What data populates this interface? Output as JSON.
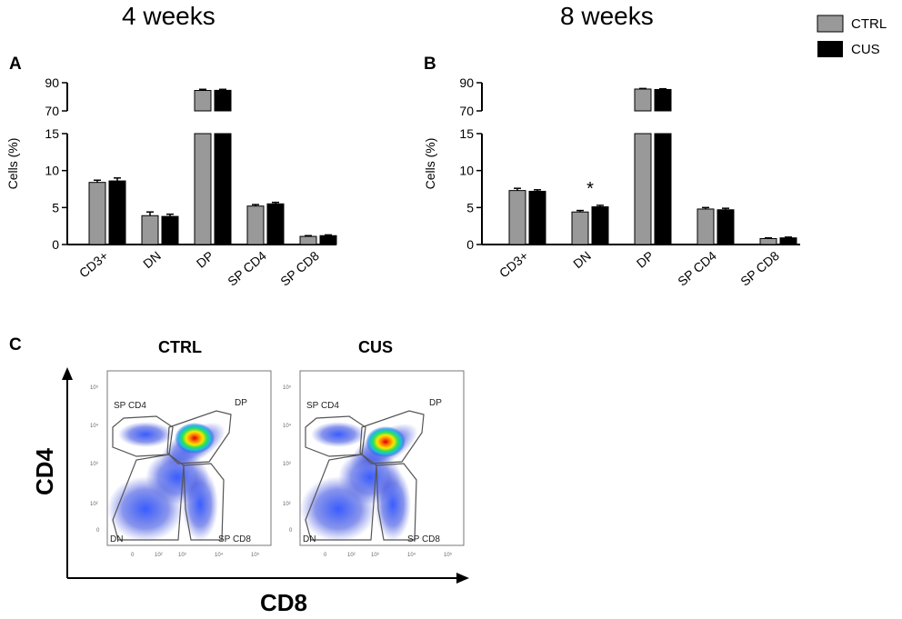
{
  "headers": {
    "left": "4 weeks",
    "right": "8 weeks"
  },
  "legend": [
    {
      "label": "CTRL",
      "color": "#999999"
    },
    {
      "label": "CUS",
      "color": "#000000"
    }
  ],
  "panel_labels": {
    "a": "A",
    "b": "B",
    "c": "C"
  },
  "chart_data": [
    {
      "type": "bar",
      "panel": "A",
      "title": "4 weeks",
      "ylabel": "Cells (%)",
      "categories": [
        "CD3+",
        "DN",
        "DP",
        "SP CD4",
        "SP CD8"
      ],
      "series": [
        {
          "name": "CTRL",
          "values": [
            8.4,
            3.9,
            84.5,
            5.2,
            1.1
          ],
          "errors": [
            0.3,
            0.5,
            0.8,
            0.2,
            0.1
          ]
        },
        {
          "name": "CUS",
          "values": [
            8.6,
            3.8,
            84.6,
            5.5,
            1.2
          ],
          "errors": [
            0.4,
            0.3,
            0.7,
            0.2,
            0.1
          ]
        }
      ],
      "y_lower_range": [
        0,
        15
      ],
      "y_upper_range": [
        70,
        90
      ],
      "y_lower_ticks": [
        "0",
        "5",
        "10",
        "15"
      ],
      "y_upper_ticks": [
        "70",
        "90"
      ],
      "annotations": []
    },
    {
      "type": "bar",
      "panel": "B",
      "title": "8 weeks",
      "ylabel": "Cells (%)",
      "categories": [
        "CD3+",
        "DN",
        "DP",
        "SP CD4",
        "SP CD8"
      ],
      "series": [
        {
          "name": "CTRL",
          "values": [
            7.3,
            4.4,
            85.5,
            4.8,
            0.8
          ],
          "errors": [
            0.3,
            0.2,
            0.4,
            0.2,
            0.1
          ]
        },
        {
          "name": "CUS",
          "values": [
            7.2,
            5.1,
            85.2,
            4.7,
            0.9
          ],
          "errors": [
            0.2,
            0.2,
            0.5,
            0.2,
            0.1
          ]
        }
      ],
      "y_lower_range": [
        0,
        15
      ],
      "y_upper_range": [
        70,
        90
      ],
      "y_lower_ticks": [
        "0",
        "5",
        "10",
        "15"
      ],
      "y_upper_ticks": [
        "70",
        "90"
      ],
      "annotations": [
        {
          "category": "DN",
          "text": "*"
        }
      ]
    }
  ],
  "flow": {
    "plots": [
      {
        "title": "CTRL",
        "gates": {
          "sp4": "SP CD4",
          "dp": "DP",
          "dn": "DN",
          "sp8": "SP CD8"
        }
      },
      {
        "title": "CUS",
        "gates": {
          "sp4": "SP CD4",
          "dp": "DP",
          "dn": "DN",
          "sp8": "SP CD8"
        }
      }
    ],
    "y_ticks": [
      "10⁵",
      "10⁴",
      "10³",
      "10²",
      "0"
    ],
    "x_ticks": [
      "0",
      "10²",
      "10³",
      "10⁴",
      "10⁵"
    ],
    "y_axis_label": "CD4",
    "x_axis_label": "CD8"
  }
}
